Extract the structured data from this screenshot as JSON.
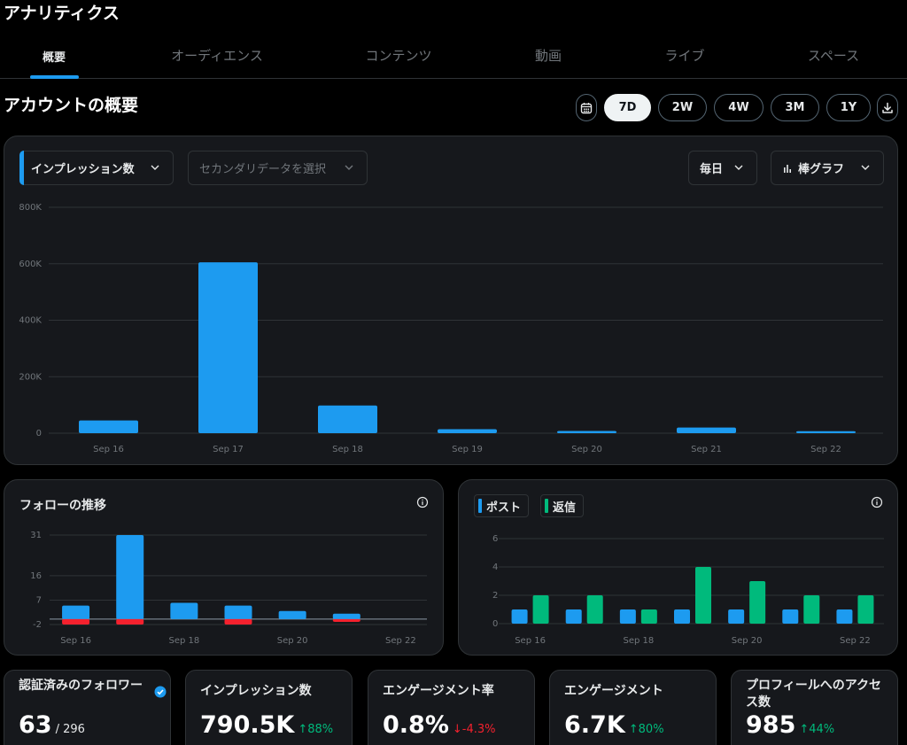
{
  "app_title": "アナリティクス",
  "tabs": [
    {
      "label": "概要"
    },
    {
      "label": "オーディエンス"
    },
    {
      "label": "コンテンツ"
    },
    {
      "label": "動画"
    },
    {
      "label": "ライブ"
    },
    {
      "label": "スペース"
    }
  ],
  "section_title": "アカウントの概要",
  "ranges": [
    "7D",
    "2W",
    "4W",
    "3M",
    "1Y"
  ],
  "selected_range": "7D",
  "icons": {
    "calendar": "calendar-icon",
    "download": "download-icon",
    "chart": "bar-chart-icon",
    "info": "info-icon",
    "verified": "verified-badge-icon"
  },
  "colors": {
    "accent": "#1d9bf0",
    "green": "#00ba7c",
    "red": "#f4212e",
    "card": "#16181c"
  },
  "main_chart": {
    "metric_label": "インプレッション数",
    "secondary_placeholder": "セカンダリデータを選択",
    "interval_label": "毎日",
    "chart_type_label": "棒グラフ"
  },
  "follow_card": {
    "title": "フォローの推移"
  },
  "posts_card": {
    "legend": [
      "ポスト",
      "返信"
    ]
  },
  "chart_data": [
    {
      "type": "bar",
      "categories": [
        "Sep 16",
        "Sep 17",
        "Sep 18",
        "Sep 19",
        "Sep 20",
        "Sep 21",
        "Sep 22"
      ],
      "values": [
        45000,
        605000,
        98000,
        14000,
        8000,
        20000,
        7000
      ],
      "yticks": [
        "0",
        "200K",
        "400K",
        "600K",
        "800K"
      ],
      "ylim": [
        0,
        800000
      ],
      "grid": true,
      "color": "#1d9bf0"
    },
    {
      "type": "bar",
      "categories": [
        "Sep 16",
        "Sep 17",
        "Sep 18",
        "Sep 19",
        "Sep 20",
        "Sep 21",
        "Sep 22"
      ],
      "xtick_labels": [
        "Sep 16",
        "",
        "Sep 18",
        "",
        "Sep 20",
        "",
        "Sep 22"
      ],
      "series": [
        {
          "values": [
            5,
            31,
            6,
            5,
            3,
            2,
            0
          ],
          "color": "#1d9bf0"
        },
        {
          "values": [
            -2,
            -2,
            0,
            -2,
            0,
            -1,
            0
          ],
          "color": "#f4212e"
        }
      ],
      "yticks": [
        "-2",
        "7",
        "16",
        "31"
      ],
      "ylim": [
        -2,
        31
      ],
      "grid": true
    },
    {
      "type": "bar",
      "categories": [
        "Sep 16",
        "Sep 17",
        "Sep 18",
        "Sep 19",
        "Sep 20",
        "Sep 21",
        "Sep 22"
      ],
      "xtick_labels": [
        "Sep 16",
        "",
        "Sep 18",
        "",
        "Sep 20",
        "",
        "Sep 22"
      ],
      "series": [
        {
          "name": "ポスト",
          "values": [
            1,
            1,
            1,
            1,
            1,
            1,
            1
          ],
          "color": "#1d9bf0"
        },
        {
          "name": "返信",
          "values": [
            2,
            2,
            1,
            4,
            3,
            2,
            2
          ],
          "color": "#00ba7c"
        }
      ],
      "yticks": [
        "0",
        "2",
        "4",
        "6"
      ],
      "ylim": [
        0,
        6
      ],
      "grid": true
    }
  ],
  "stats": [
    {
      "label": "認証済みのフォロワー",
      "value": "63",
      "sub": "/ 296",
      "change": "",
      "dir": ""
    },
    {
      "label": "インプレッション数",
      "value": "790.5K",
      "sub": "",
      "change": "↑88%",
      "dir": "up"
    },
    {
      "label": "エンゲージメント率",
      "value": "0.8%",
      "sub": "",
      "change": "↓-4.3%",
      "dir": "down"
    },
    {
      "label": "エンゲージメント",
      "value": "6.7K",
      "sub": "",
      "change": "↑80%",
      "dir": "up"
    },
    {
      "label": "プロフィールへのアクセス数",
      "value": "985",
      "sub": "",
      "change": "↑44%",
      "dir": "up"
    }
  ]
}
